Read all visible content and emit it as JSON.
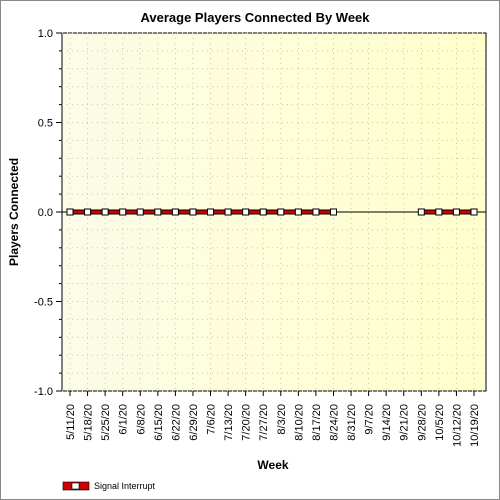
{
  "chart_data": {
    "type": "line",
    "title": "Average Players Connected By Week",
    "xlabel": "Week",
    "ylabel": "Players Connected",
    "ylim": [
      -1.0,
      1.0
    ],
    "y_ticks": [
      "1.0",
      "0.5",
      "0.0",
      "-0.5",
      "-1.0"
    ],
    "y_tick_values": [
      1.0,
      0.5,
      0.0,
      -0.5,
      -1.0
    ],
    "categories": [
      "5/11/20",
      "5/18/20",
      "5/25/20",
      "6/1/20",
      "6/8/20",
      "6/15/20",
      "6/22/20",
      "6/29/20",
      "7/6/20",
      "7/13/20",
      "7/20/20",
      "7/27/20",
      "8/3/20",
      "8/10/20",
      "8/17/20",
      "8/24/20",
      "8/31/20",
      "9/7/20",
      "9/14/20",
      "9/21/20",
      "9/28/20",
      "10/5/20",
      "10/12/20",
      "10/19/20"
    ],
    "series": [
      {
        "name": "Signal Interrupt",
        "color": "#cc0000",
        "values": [
          0,
          0,
          0,
          0,
          0,
          0,
          0,
          0,
          0,
          0,
          0,
          0,
          0,
          0,
          0,
          0,
          null,
          null,
          null,
          null,
          0,
          0,
          0,
          0
        ]
      }
    ],
    "grid": true,
    "legend_position": "bottom-left",
    "background_gradient": [
      "#fefef0",
      "#ffffcc"
    ]
  }
}
